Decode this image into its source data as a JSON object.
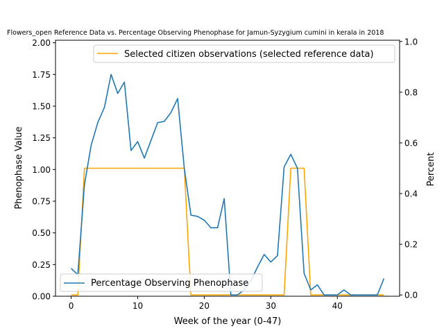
{
  "chart_data": {
    "type": "line",
    "title": "Flowers_open Reference Data vs. Percentage Observing Phenophase for Jamun-Syzygium cumini in kerala in 2018",
    "xlabel": "Week of the year (0-47)",
    "ylabel_left": "Phenophase Value",
    "ylabel_right": "Percent",
    "xlim": [
      -2.35,
      49.35
    ],
    "ylim_left": [
      0,
      2.02
    ],
    "ylim_right": [
      -0.005,
      1.005
    ],
    "xticks": [
      0,
      10,
      20,
      30,
      40
    ],
    "yticks_left": [
      "0.00",
      "0.25",
      "0.50",
      "0.75",
      "1.00",
      "1.25",
      "1.50",
      "1.75",
      "2.00"
    ],
    "yticks_right": [
      "0.0",
      "0.2",
      "0.4",
      "0.6",
      "0.8",
      "1.0"
    ],
    "grid": false,
    "series": [
      {
        "name": "Percentage Observing Phenophase",
        "axis": "left",
        "color": "#1f77b4",
        "legend_position": "lower-left",
        "x": [
          0,
          1,
          2,
          3,
          4,
          5,
          6,
          7,
          8,
          9,
          10,
          11,
          12,
          13,
          14,
          15,
          16,
          17,
          18,
          19,
          20,
          21,
          22,
          23,
          24,
          25,
          26,
          27,
          28,
          29,
          30,
          31,
          32,
          33,
          34,
          35,
          36,
          37,
          38,
          39,
          40,
          41,
          42,
          43,
          44,
          45,
          46,
          47
        ],
        "y": [
          0.22,
          0.17,
          0.88,
          1.19,
          1.37,
          1.49,
          1.75,
          1.6,
          1.69,
          1.15,
          1.22,
          1.09,
          1.23,
          1.37,
          1.38,
          1.45,
          1.56,
          1.01,
          0.64,
          0.63,
          0.6,
          0.54,
          0.54,
          0.77,
          0.01,
          0.01,
          0.05,
          0.12,
          0.23,
          0.33,
          0.27,
          0.32,
          1.02,
          1.12,
          1.01,
          0.18,
          0.05,
          0.09,
          0.01,
          0.01,
          0.01,
          0.05,
          0.01,
          0.01,
          0.01,
          0.01,
          0.01,
          0.14
        ]
      },
      {
        "name": "Selected citizen observations (selected reference data)",
        "axis": "right",
        "color": "#ffa500",
        "legend_position": "top-right",
        "x": [
          0,
          1,
          2,
          3,
          4,
          5,
          6,
          7,
          8,
          9,
          10,
          11,
          12,
          13,
          14,
          15,
          16,
          17,
          18,
          19,
          20,
          21,
          22,
          23,
          24,
          25,
          26,
          27,
          28,
          29,
          30,
          31,
          32,
          33,
          34,
          35,
          36,
          37,
          38,
          39,
          40,
          41,
          42,
          43,
          44,
          45,
          46,
          47
        ],
        "y": [
          0,
          0,
          0.5,
          0.5,
          0.5,
          0.5,
          0.5,
          0.5,
          0.5,
          0.5,
          0.5,
          0.5,
          0.5,
          0.5,
          0.5,
          0.5,
          0.5,
          0.5,
          0,
          0,
          0,
          0,
          0,
          0,
          0,
          0,
          0,
          0,
          0,
          0,
          0,
          0,
          0,
          0.5,
          0.5,
          0.5,
          0,
          0,
          0,
          0,
          0,
          0,
          0,
          0,
          0,
          0,
          0,
          0
        ]
      }
    ]
  }
}
